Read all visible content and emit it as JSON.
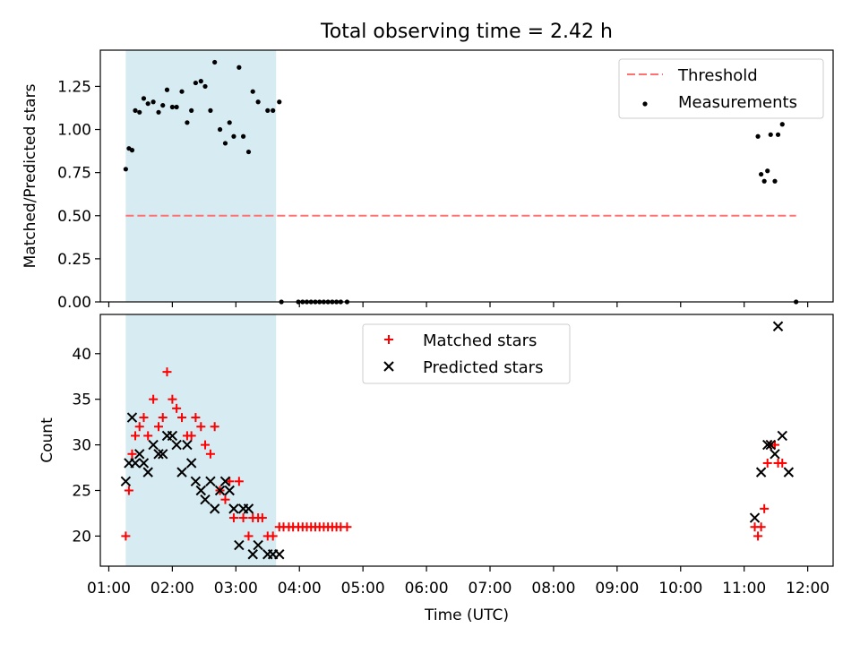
{
  "title": "Total observing time = 2.42 h",
  "chart_data": [
    {
      "type": "scatter",
      "ylabel": "Matched/Predicted stars",
      "ylim": [
        0,
        1.46
      ],
      "xlim": [
        "00:52",
        "12:24"
      ],
      "yticks": [
        "0.00",
        "0.25",
        "0.50",
        "0.75",
        "1.00",
        "1.25"
      ],
      "shaded_span": {
        "from": "01:16",
        "to": "03:38",
        "color": "#add8e6"
      },
      "legend_position": "top-right",
      "threshold": {
        "name": "Threshold",
        "value": 0.5,
        "from": "01:16",
        "to": "11:49",
        "color": "#ff7070",
        "style": "dashed"
      },
      "series": [
        {
          "name": "Measurements",
          "marker": "dot",
          "color": "#000000",
          "points": [
            [
              "01:16",
              0.77
            ],
            [
              "01:19",
              0.89
            ],
            [
              "01:22",
              0.88
            ],
            [
              "01:25",
              1.11
            ],
            [
              "01:29",
              1.1
            ],
            [
              "01:33",
              1.18
            ],
            [
              "01:37",
              1.15
            ],
            [
              "01:42",
              1.16
            ],
            [
              "01:47",
              1.1
            ],
            [
              "01:51",
              1.14
            ],
            [
              "01:55",
              1.23
            ],
            [
              "02:00",
              1.13
            ],
            [
              "02:04",
              1.13
            ],
            [
              "02:09",
              1.22
            ],
            [
              "02:14",
              1.04
            ],
            [
              "02:18",
              1.11
            ],
            [
              "02:22",
              1.27
            ],
            [
              "02:27",
              1.28
            ],
            [
              "02:31",
              1.25
            ],
            [
              "02:36",
              1.11
            ],
            [
              "02:40",
              1.39
            ],
            [
              "02:45",
              1.0
            ],
            [
              "02:50",
              0.92
            ],
            [
              "02:54",
              1.04
            ],
            [
              "02:58",
              0.96
            ],
            [
              "03:03",
              1.36
            ],
            [
              "03:07",
              0.96
            ],
            [
              "03:12",
              0.87
            ],
            [
              "03:16",
              1.22
            ],
            [
              "03:21",
              1.16
            ],
            [
              "03:30",
              1.11
            ],
            [
              "03:35",
              1.11
            ],
            [
              "03:41",
              1.16
            ],
            [
              "03:43",
              0.0
            ],
            [
              "03:59",
              0.0
            ],
            [
              "04:03",
              0.0
            ],
            [
              "04:07",
              0.0
            ],
            [
              "04:11",
              0.0
            ],
            [
              "04:15",
              0.0
            ],
            [
              "04:19",
              0.0
            ],
            [
              "04:23",
              0.0
            ],
            [
              "04:27",
              0.0
            ],
            [
              "04:31",
              0.0
            ],
            [
              "04:35",
              0.0
            ],
            [
              "04:39",
              0.0
            ],
            [
              "04:45",
              0.0
            ],
            [
              "11:13",
              0.96
            ],
            [
              "11:16",
              0.74
            ],
            [
              "11:19",
              0.7
            ],
            [
              "11:22",
              0.76
            ],
            [
              "11:25",
              0.97
            ],
            [
              "11:29",
              0.7
            ],
            [
              "11:32",
              0.97
            ],
            [
              "11:36",
              1.03
            ],
            [
              "11:49",
              0.0
            ]
          ]
        }
      ]
    },
    {
      "type": "scatter",
      "xlabel": "Time (UTC)",
      "ylabel": "Count",
      "ylim": [
        16.7,
        44.3
      ],
      "xlim": [
        "00:52",
        "12:24"
      ],
      "xticks": [
        "01:00",
        "02:00",
        "03:00",
        "04:00",
        "05:00",
        "06:00",
        "07:00",
        "08:00",
        "09:00",
        "10:00",
        "11:00",
        "12:00"
      ],
      "yticks": [
        "20",
        "25",
        "30",
        "35",
        "40"
      ],
      "shaded_span": {
        "from": "01:16",
        "to": "03:38",
        "color": "#add8e6"
      },
      "legend_position": "top-center",
      "series": [
        {
          "name": "Matched stars",
          "marker": "plus",
          "color": "#ff0000",
          "points": [
            [
              "01:16",
              20
            ],
            [
              "01:19",
              25
            ],
            [
              "01:22",
              29
            ],
            [
              "01:25",
              31
            ],
            [
              "01:29",
              32
            ],
            [
              "01:33",
              33
            ],
            [
              "01:37",
              31
            ],
            [
              "01:42",
              35
            ],
            [
              "01:47",
              32
            ],
            [
              "01:51",
              33
            ],
            [
              "01:55",
              38
            ],
            [
              "02:00",
              35
            ],
            [
              "02:04",
              34
            ],
            [
              "02:09",
              33
            ],
            [
              "02:14",
              31
            ],
            [
              "02:18",
              31
            ],
            [
              "02:22",
              33
            ],
            [
              "02:27",
              32
            ],
            [
              "02:31",
              30
            ],
            [
              "02:36",
              29
            ],
            [
              "02:40",
              32
            ],
            [
              "02:45",
              25
            ],
            [
              "02:50",
              24
            ],
            [
              "02:54",
              26
            ],
            [
              "02:58",
              22
            ],
            [
              "03:03",
              26
            ],
            [
              "03:07",
              22
            ],
            [
              "03:12",
              20
            ],
            [
              "03:16",
              22
            ],
            [
              "03:21",
              22
            ],
            [
              "03:25",
              22
            ],
            [
              "03:30",
              20
            ],
            [
              "03:35",
              20
            ],
            [
              "03:41",
              21
            ],
            [
              "03:45",
              21
            ],
            [
              "03:50",
              21
            ],
            [
              "03:54",
              21
            ],
            [
              "03:59",
              21
            ],
            [
              "04:03",
              21
            ],
            [
              "04:07",
              21
            ],
            [
              "04:11",
              21
            ],
            [
              "04:15",
              21
            ],
            [
              "04:19",
              21
            ],
            [
              "04:23",
              21
            ],
            [
              "04:27",
              21
            ],
            [
              "04:31",
              21
            ],
            [
              "04:35",
              21
            ],
            [
              "04:39",
              21
            ],
            [
              "04:45",
              21
            ],
            [
              "11:10",
              21
            ],
            [
              "11:13",
              20
            ],
            [
              "11:16",
              21
            ],
            [
              "11:19",
              23
            ],
            [
              "11:22",
              28
            ],
            [
              "11:25",
              30
            ],
            [
              "11:29",
              30
            ],
            [
              "11:32",
              28
            ],
            [
              "11:36",
              28
            ]
          ]
        },
        {
          "name": "Predicted stars",
          "marker": "x",
          "color": "#000000",
          "points": [
            [
              "01:16",
              26
            ],
            [
              "01:19",
              28
            ],
            [
              "01:22",
              33
            ],
            [
              "01:25",
              28
            ],
            [
              "01:29",
              29
            ],
            [
              "01:33",
              28
            ],
            [
              "01:37",
              27
            ],
            [
              "01:42",
              30
            ],
            [
              "01:47",
              29
            ],
            [
              "01:51",
              29
            ],
            [
              "01:55",
              31
            ],
            [
              "02:00",
              31
            ],
            [
              "02:04",
              30
            ],
            [
              "02:09",
              27
            ],
            [
              "02:14",
              30
            ],
            [
              "02:18",
              28
            ],
            [
              "02:22",
              26
            ],
            [
              "02:27",
              25
            ],
            [
              "02:31",
              24
            ],
            [
              "02:36",
              26
            ],
            [
              "02:40",
              23
            ],
            [
              "02:45",
              25
            ],
            [
              "02:50",
              26
            ],
            [
              "02:54",
              25
            ],
            [
              "02:58",
              23
            ],
            [
              "03:03",
              19
            ],
            [
              "03:07",
              23
            ],
            [
              "03:12",
              23
            ],
            [
              "03:16",
              18
            ],
            [
              "03:21",
              19
            ],
            [
              "03:30",
              18
            ],
            [
              "03:35",
              18
            ],
            [
              "03:41",
              18
            ],
            [
              "11:10",
              22
            ],
            [
              "11:16",
              27
            ],
            [
              "11:22",
              30
            ],
            [
              "11:25",
              30
            ],
            [
              "11:29",
              29
            ],
            [
              "11:32",
              43
            ],
            [
              "11:36",
              31
            ],
            [
              "11:42",
              27
            ]
          ]
        }
      ]
    }
  ]
}
